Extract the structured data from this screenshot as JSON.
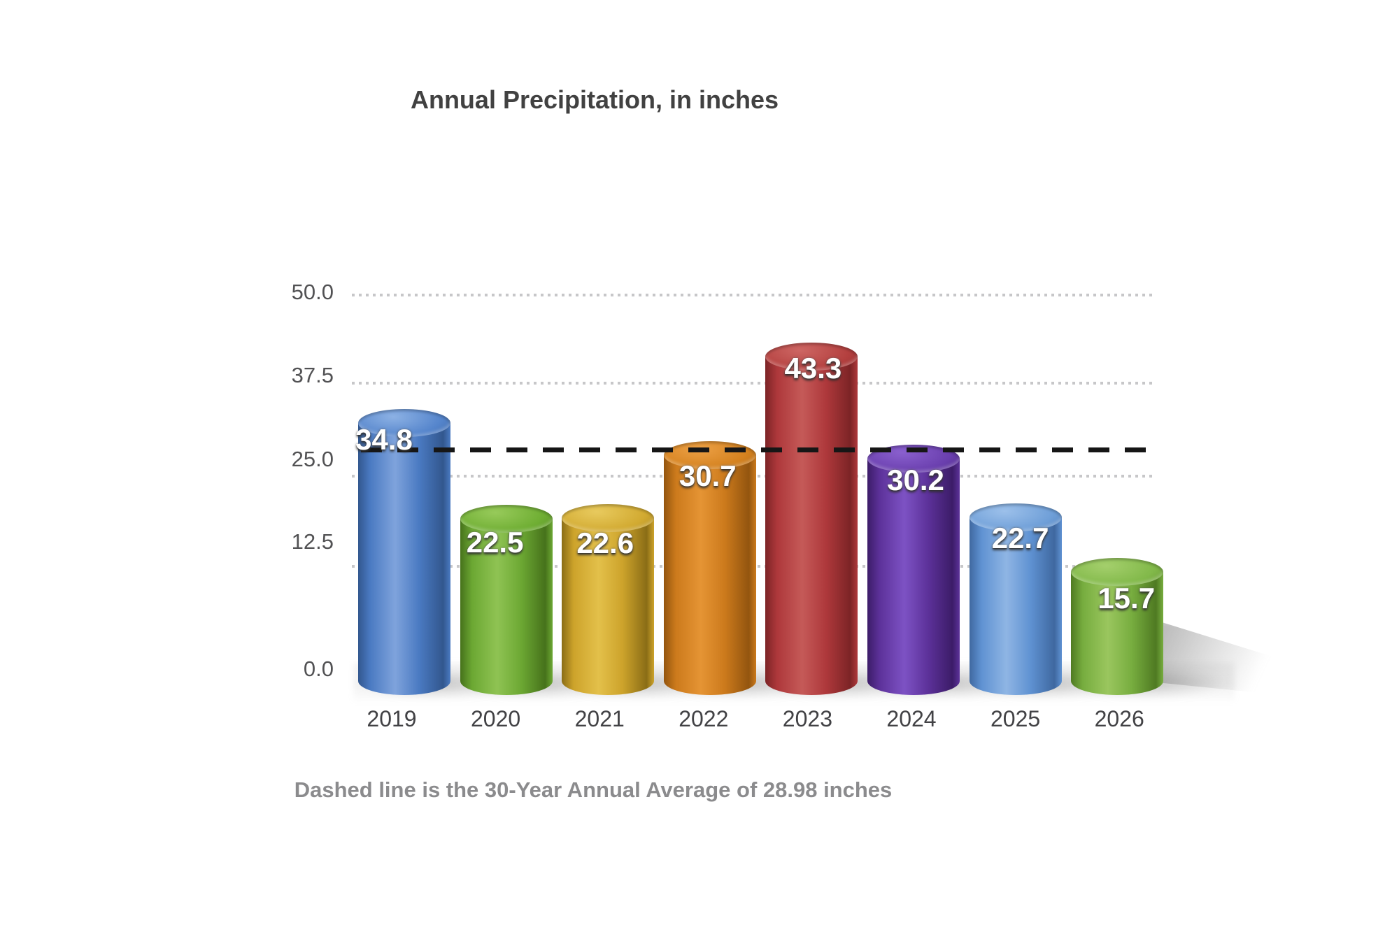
{
  "chart_data": {
    "type": "bar",
    "style": "3d-cylinder",
    "title": "Annual Precipitation, in inches",
    "caption": "Dashed line is the 30-Year Annual Average of 28.98 inches",
    "categories": [
      "2019",
      "2020",
      "2021",
      "2022",
      "2023",
      "2024",
      "2025",
      "2026"
    ],
    "values": [
      34.8,
      22.5,
      22.6,
      30.7,
      43.3,
      30.2,
      22.7,
      15.7
    ],
    "value_labels": [
      "34.8",
      "22.5",
      "22.6",
      "30.7",
      "43.3",
      "30.2",
      "22.7",
      "15.7"
    ],
    "ylabel": "",
    "xlabel": "",
    "ylim": [
      0,
      50
    ],
    "y_ticks": [
      "50.0",
      "37.5",
      "25.0",
      "12.5",
      "0.0"
    ],
    "y_tick_values": [
      50.0,
      37.5,
      25.0,
      12.5,
      0.0
    ],
    "grid": "dotted horizontal",
    "legend": "none",
    "reference_line": {
      "value": 28.98,
      "style": "dashed",
      "color": "#161616",
      "meaning": "30-Year Annual Average"
    },
    "bar_colors": [
      {
        "name": "blue",
        "light": "#7fa3dc",
        "mid": "#4a7ac2",
        "dark": "#32578e",
        "cap": "#5585cc",
        "capHi": "#8cb1e4"
      },
      {
        "name": "green",
        "light": "#8fc353",
        "mid": "#6ca833",
        "dark": "#46721b",
        "cap": "#6fae33",
        "capHi": "#97ca5a"
      },
      {
        "name": "gold",
        "light": "#e3c04a",
        "mid": "#cda32b",
        "dark": "#8a6d16",
        "cap": "#d2aa31",
        "capHi": "#e8ca5e"
      },
      {
        "name": "orange",
        "light": "#e59434",
        "mid": "#cc7a1c",
        "dark": "#93550f",
        "cap": "#d5821f",
        "capHi": "#eca045"
      },
      {
        "name": "red",
        "light": "#c55a58",
        "mid": "#ae383b",
        "dark": "#7c2426",
        "cap": "#b4403f",
        "capHi": "#cd6663"
      },
      {
        "name": "purple",
        "light": "#7d52c4",
        "mid": "#5c3199",
        "dark": "#3c1c68",
        "cap": "#6a3fae",
        "capHi": "#8a60ce"
      },
      {
        "name": "light-blue",
        "light": "#8fb5e4",
        "mid": "#5f92d2",
        "dark": "#3f68a0",
        "cap": "#6f9fd8",
        "capHi": "#9cc0ea"
      },
      {
        "name": "green",
        "light": "#9ac65e",
        "mid": "#77ad3f",
        "dark": "#4f7a22",
        "cap": "#82b94a",
        "capHi": "#a4cf6c"
      }
    ]
  }
}
